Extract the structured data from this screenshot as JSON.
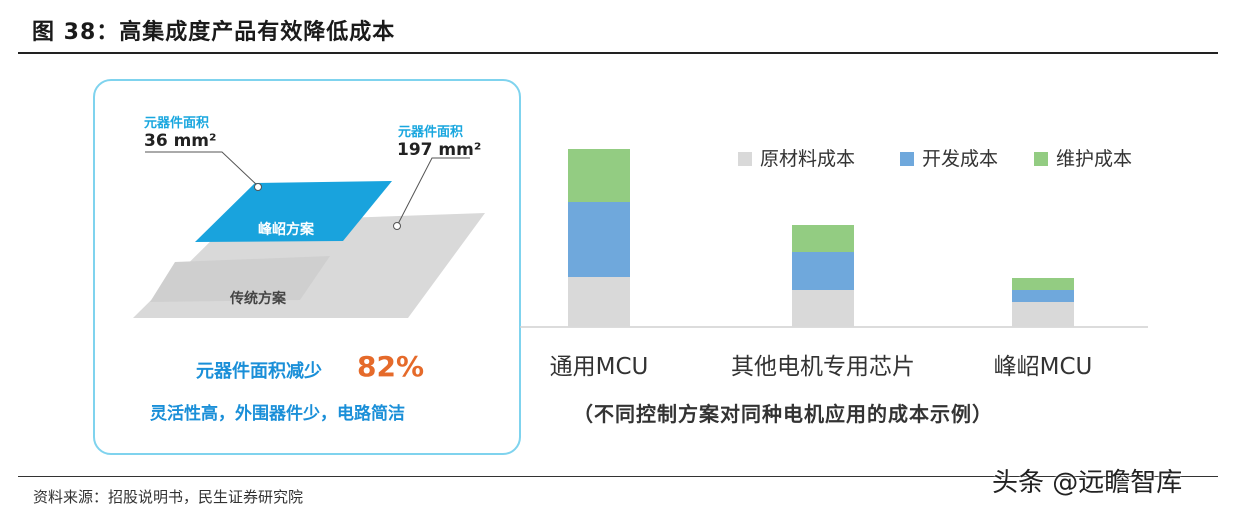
{
  "figure_title": "图 38：高集成度产品有效降低成本",
  "left_panel": {
    "small_label": "元器件面积",
    "small_value": "36 mm²",
    "large_label": "元器件面积",
    "large_value": "197 mm²",
    "top_plate_label": "峰岹方案",
    "bottom_plate_label": "传统方案",
    "reduction_text": "元器件面积减少",
    "reduction_pct": "82%",
    "benefits": "灵活性高，外围器件少，电路简洁",
    "colors": {
      "top_plate": "#19a3dd",
      "bottom_plate": "#d9d9d9",
      "border": "#7fd3ee"
    }
  },
  "chart_data": {
    "type": "bar",
    "stacked": true,
    "categories": [
      "通用MCU",
      "其他电机专用芯片",
      "峰岹MCU"
    ],
    "series": [
      {
        "name": "原材料成本",
        "color": "#d9d9d9",
        "values": [
          50,
          37,
          25
        ]
      },
      {
        "name": "开发成本",
        "color": "#6fa8dc",
        "values": [
          75,
          38,
          12
        ]
      },
      {
        "name": "维护成本",
        "color": "#93cc82",
        "values": [
          53,
          27,
          12
        ]
      }
    ],
    "legend_position": "top-right",
    "grid": false
  },
  "caption": "（不同控制方案对同种电机应用的成本示例）",
  "source": "资料来源：招股说明书，民生证券研究院",
  "watermark": "头条 @远瞻智库"
}
